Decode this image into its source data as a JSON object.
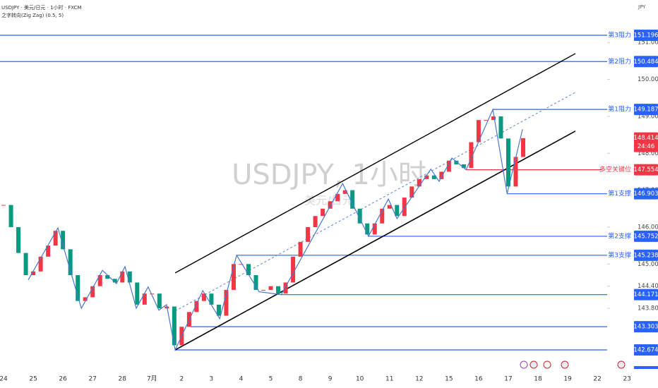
{
  "chart_data": {
    "type": "candlestick",
    "title": "USDJPY · 美元/日元 · 1小时 · FXCM",
    "indicator": "之字转向(Zig Zag) (0.5, 5)",
    "watermark": "USDJPY, 1小时",
    "watermark_sub": "美元/日元",
    "currency": "JPY",
    "categories": [
      "24",
      "25",
      "26",
      "27",
      "28",
      "7月",
      "2",
      "3",
      "4",
      "5",
      "8",
      "9",
      "10",
      "11",
      "12",
      "15",
      "16",
      "17",
      "18",
      "19",
      "22",
      "23"
    ],
    "xlim": [
      -0.12,
      20.33
    ],
    "ylim": [
      142.216,
      152.151
    ],
    "yticks": [
      {
        "value": 151,
        "label": "151.000"
      },
      {
        "value": 150,
        "label": "150.000"
      },
      {
        "value": 149,
        "label": "149.000"
      },
      {
        "value": 148,
        "label": "148.000"
      },
      {
        "value": 147,
        "label": "147.000"
      },
      {
        "value": 146,
        "label": "146.000"
      },
      {
        "value": 145,
        "label": "145.000"
      },
      {
        "value": 144.4,
        "label": "144.400"
      },
      {
        "value": 143.8,
        "label": "143.800"
      }
    ],
    "up_color": "#f23645",
    "down_color": "#089981",
    "x": [
      0,
      0.25,
      0.5,
      0.75,
      1,
      1.25,
      1.5,
      1.75,
      2,
      2.25,
      2.5,
      2.75,
      3,
      3.25,
      3.5,
      3.75,
      4,
      4.25,
      4.5,
      4.75,
      5,
      5.25,
      5.5,
      5.75,
      6,
      6.25,
      6.5,
      6.75,
      7,
      7.25,
      7.5,
      7.75,
      8,
      8.25,
      8.5,
      8.75,
      9,
      9.25,
      9.5,
      9.75,
      10,
      10.25,
      10.5,
      10.75,
      11,
      11.25,
      11.5,
      11.75,
      12,
      12.25,
      12.5,
      12.75,
      13,
      13.25,
      13.5,
      13.75,
      14,
      14.25,
      14.5,
      14.75,
      15,
      15.25,
      15.5,
      15.75,
      16,
      16.25,
      16.5,
      16.75,
      17,
      17.25,
      17.5
    ],
    "values": [
      146.6,
      146.0,
      145.3,
      144.7,
      144.8,
      145.2,
      145.5,
      145.9,
      145.4,
      144.7,
      144.0,
      144.1,
      144.4,
      144.7,
      144.6,
      144.5,
      144.8,
      144.5,
      143.9,
      144.2,
      144.2,
      143.8,
      143.85,
      142.8,
      143.3,
      143.7,
      144.0,
      144.2,
      143.9,
      143.6,
      144.3,
      145.0,
      145.0,
      144.7,
      144.3,
      144.3,
      144.4,
      144.2,
      144.5,
      145.2,
      145.6,
      146.0,
      146.3,
      146.5,
      146.7,
      146.9,
      147.0,
      146.5,
      146.1,
      145.8,
      146.1,
      146.5,
      146.6,
      146.3,
      146.8,
      147.1,
      147.3,
      147.4,
      147.3,
      147.5,
      147.8,
      147.7,
      147.6,
      148.3,
      148.9,
      148.9,
      149.0,
      148.4,
      147.1,
      147.9,
      148.41
    ],
    "zigzag": {
      "color": "#4a78c9",
      "x": [
        0.83,
        1.83,
        2.62,
        3.33,
        3.8,
        4.09,
        4.47,
        4.87,
        5.23,
        5.49,
        5.78,
        6.71,
        7.28,
        7.85,
        8.61,
        9.35,
        11.42,
        12.29,
        12.96,
        13.25,
        14.39,
        14.67,
        15.1,
        15.58,
        16.48,
        16.96,
        17.48
      ],
      "values": [
        144.57,
        145.98,
        143.8,
        144.83,
        144.47,
        144.93,
        143.8,
        144.38,
        143.75,
        143.9,
        142.674,
        144.28,
        143.52,
        145.238,
        144.25,
        144.171,
        147.18,
        145.752,
        146.76,
        146.23,
        147.57,
        147.24,
        147.87,
        147.554,
        149.187,
        146.903,
        148.65
      ]
    },
    "channel": {
      "color": "#000000",
      "mid_color": "#5b7fd6",
      "x": [
        5.78,
        19.26
      ],
      "upper": [
        144.76,
        150.7
      ],
      "lower": [
        142.674,
        148.6
      ],
      "mid": [
        143.73,
        149.65
      ]
    },
    "levels": [
      {
        "label": "第3阻力",
        "value": 151.196,
        "from": -0.12,
        "color": "#2962ff"
      },
      {
        "label": "第2阻力",
        "value": 150.484,
        "from": -0.12,
        "color": "#2962ff"
      },
      {
        "label": "第1阻力",
        "value": 149.187,
        "from": 16.48,
        "color": "#2962ff"
      },
      {
        "label": "多空关键位",
        "value": 147.554,
        "from": 15.58,
        "color": "#f23645"
      },
      {
        "label": "第1支撑",
        "value": 146.903,
        "from": 16.96,
        "color": "#2962ff"
      },
      {
        "label": "第2支撑",
        "value": 145.752,
        "from": 12.29,
        "color": "#2962ff"
      },
      {
        "label": "第3支撑",
        "value": 145.238,
        "from": 7.85,
        "color": "#2962ff"
      },
      {
        "label": null,
        "value": 144.171,
        "from": 9.35,
        "color": "#2962ff"
      },
      {
        "label": null,
        "value": 143.303,
        "from": 6.3,
        "color": "#2962ff"
      },
      {
        "label": null,
        "value": 142.674,
        "from": 5.78,
        "color": "#2962ff"
      }
    ],
    "last_price": {
      "value": 148.414,
      "countdown": "24:46",
      "color": "#f23645"
    }
  }
}
